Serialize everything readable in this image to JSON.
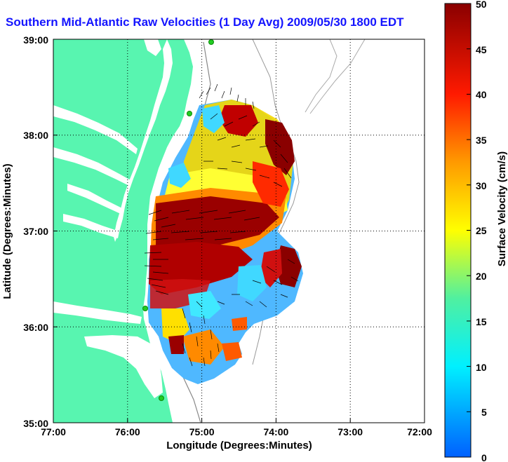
{
  "title": "Southern Mid-Atlantic Raw Velocities (1 Day Avg) 2009/05/30 1800 EDT",
  "map": {
    "x_axis_label": "Longitude (Degrees:Minutes)",
    "y_axis_label": "Latitude (Degrees:Minutes)",
    "x_ticks": [
      "77:00",
      "76:00",
      "75:00",
      "74:00",
      "73:00",
      "72:00"
    ],
    "y_ticks": [
      "39:00",
      "38:00",
      "37:00",
      "36:00",
      "35:00"
    ],
    "land_color": "#58f5b0",
    "water_color": "#ffffff",
    "station_color": "#22cc22"
  },
  "colorbar": {
    "label": "Surface Velocity (cm/s)",
    "ticks": [
      "50",
      "45",
      "40",
      "35",
      "30",
      "25",
      "20",
      "15",
      "10",
      "5",
      "0"
    ],
    "min": 0,
    "max": 50,
    "units": "cm/s"
  }
}
